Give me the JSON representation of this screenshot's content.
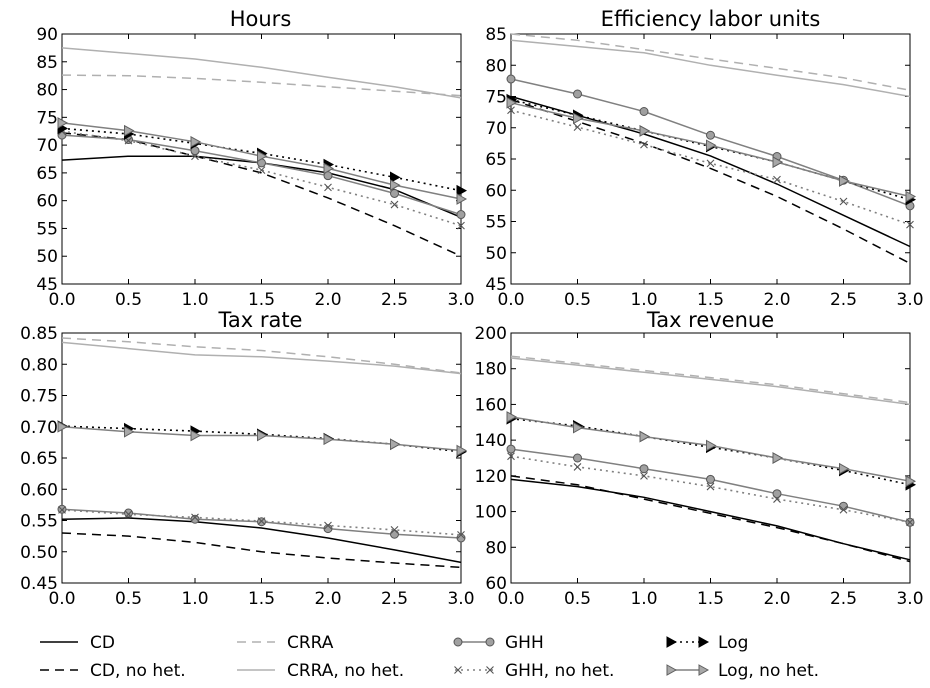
{
  "chart_data": [
    {
      "type": "line",
      "title": "Hours",
      "x": [
        0,
        0.5,
        1,
        1.5,
        2,
        2.5,
        3
      ],
      "xlim": [
        0,
        3
      ],
      "ylim": [
        45,
        90
      ],
      "xticks": [
        "0.0",
        "0.5",
        "1.0",
        "1.5",
        "2.0",
        "2.5",
        "3.0"
      ],
      "yticks": [
        "45",
        "50",
        "55",
        "60",
        "65",
        "70",
        "75",
        "80",
        "85",
        "90"
      ],
      "series": [
        {
          "name": "CD",
          "values": [
            67.3,
            68.0,
            68.0,
            66.8,
            65.0,
            62.0,
            57.0
          ]
        },
        {
          "name": "CD, no het.",
          "values": [
            72.2,
            71.0,
            68.0,
            65.0,
            60.5,
            55.5,
            50.0
          ]
        },
        {
          "name": "CRRA",
          "values": [
            82.6,
            82.5,
            82.0,
            81.3,
            80.5,
            79.7,
            78.9
          ]
        },
        {
          "name": "CRRA, no het.",
          "values": [
            87.5,
            86.5,
            85.5,
            84.0,
            82.2,
            80.5,
            78.5
          ]
        },
        {
          "name": "GHH",
          "values": [
            71.8,
            71.0,
            69.0,
            66.8,
            64.5,
            61.3,
            57.5
          ]
        },
        {
          "name": "GHH, no het.",
          "values": [
            72.5,
            70.8,
            68.0,
            65.5,
            62.4,
            59.3,
            55.5
          ]
        },
        {
          "name": "Log",
          "values": [
            73.0,
            72.0,
            70.3,
            68.5,
            66.5,
            64.2,
            61.8
          ]
        },
        {
          "name": "Log, no het.",
          "values": [
            74.0,
            72.6,
            70.6,
            68.0,
            65.8,
            62.8,
            60.3
          ]
        }
      ]
    },
    {
      "type": "line",
      "title": "Efficiency labor units",
      "x": [
        0,
        0.5,
        1,
        1.5,
        2,
        2.5,
        3
      ],
      "xlim": [
        0,
        3
      ],
      "ylim": [
        45,
        85
      ],
      "xticks": [
        "0.0",
        "0.5",
        "1.0",
        "1.5",
        "2.0",
        "2.5",
        "3.0"
      ],
      "yticks": [
        "45",
        "50",
        "55",
        "60",
        "65",
        "70",
        "75",
        "80",
        "85"
      ],
      "series": [
        {
          "name": "CD",
          "values": [
            75.0,
            72.0,
            69.0,
            65.5,
            61.0,
            56.0,
            51.0
          ]
        },
        {
          "name": "CD, no het.",
          "values": [
            74.5,
            71.0,
            67.5,
            63.5,
            59.0,
            53.8,
            48.3
          ]
        },
        {
          "name": "CRRA",
          "values": [
            85.0,
            84.0,
            82.5,
            81.0,
            79.5,
            78.0,
            76.0
          ]
        },
        {
          "name": "CRRA, no het.",
          "values": [
            84.0,
            83.0,
            82.0,
            80.0,
            78.4,
            76.9,
            75.0
          ]
        },
        {
          "name": "GHH",
          "values": [
            77.8,
            75.4,
            72.6,
            68.8,
            65.4,
            61.6,
            57.5
          ]
        },
        {
          "name": "GHH, no het.",
          "values": [
            72.8,
            70.1,
            67.3,
            64.3,
            61.7,
            58.2,
            54.5
          ]
        },
        {
          "name": "Log",
          "values": [
            74.5,
            72.0,
            69.5,
            67.0,
            64.5,
            61.5,
            58.5
          ]
        },
        {
          "name": "Log, no het.",
          "values": [
            74.0,
            71.5,
            69.5,
            67.2,
            64.5,
            61.5,
            59.0
          ]
        }
      ]
    },
    {
      "type": "line",
      "title": "Tax rate",
      "x": [
        0,
        0.5,
        1,
        1.5,
        2,
        2.5,
        3
      ],
      "xlim": [
        0,
        3
      ],
      "ylim": [
        0.45,
        0.85
      ],
      "xticks": [
        "0.0",
        "0.5",
        "1.0",
        "1.5",
        "2.0",
        "2.5",
        "3.0"
      ],
      "yticks": [
        "0.45",
        "0.50",
        "0.55",
        "0.60",
        "0.65",
        "0.70",
        "0.75",
        "0.80",
        "0.85"
      ],
      "series": [
        {
          "name": "CD",
          "values": [
            0.552,
            0.554,
            0.548,
            0.538,
            0.522,
            0.503,
            0.483
          ]
        },
        {
          "name": "CD, no het.",
          "values": [
            0.53,
            0.525,
            0.515,
            0.5,
            0.49,
            0.482,
            0.475
          ]
        },
        {
          "name": "CRRA",
          "values": [
            0.842,
            0.836,
            0.828,
            0.822,
            0.812,
            0.8,
            0.786
          ]
        },
        {
          "name": "CRRA, no het.",
          "values": [
            0.835,
            0.825,
            0.815,
            0.812,
            0.805,
            0.797,
            0.785
          ]
        },
        {
          "name": "GHH",
          "values": [
            0.568,
            0.562,
            0.552,
            0.548,
            0.537,
            0.528,
            0.522
          ]
        },
        {
          "name": "GHH, no het.",
          "values": [
            0.567,
            0.56,
            0.555,
            0.549,
            0.542,
            0.535,
            0.527
          ]
        },
        {
          "name": "Log",
          "values": [
            0.701,
            0.697,
            0.693,
            0.688,
            0.681,
            0.672,
            0.66
          ]
        },
        {
          "name": "Log, no het.",
          "values": [
            0.7,
            0.692,
            0.686,
            0.686,
            0.68,
            0.672,
            0.662
          ]
        }
      ]
    },
    {
      "type": "line",
      "title": "Tax revenue",
      "x": [
        0,
        0.5,
        1,
        1.5,
        2,
        2.5,
        3
      ],
      "xlim": [
        0,
        3
      ],
      "ylim": [
        60,
        200
      ],
      "xticks": [
        "0.0",
        "0.5",
        "1.0",
        "1.5",
        "2.0",
        "2.5",
        "3.0"
      ],
      "yticks": [
        "60",
        "80",
        "100",
        "120",
        "140",
        "160",
        "180",
        "200"
      ],
      "series": [
        {
          "name": "CD",
          "values": [
            118,
            114,
            108,
            100,
            92,
            82,
            73
          ]
        },
        {
          "name": "CD, no het.",
          "values": [
            120,
            115,
            107,
            99,
            91,
            82,
            72
          ]
        },
        {
          "name": "CRRA",
          "values": [
            187,
            183,
            179,
            175,
            171,
            166,
            161
          ]
        },
        {
          "name": "CRRA, no het.",
          "values": [
            186,
            182,
            178,
            174,
            170,
            165,
            160
          ]
        },
        {
          "name": "GHH",
          "values": [
            135,
            130,
            124,
            118,
            110,
            103,
            94
          ]
        },
        {
          "name": "GHH, no het.",
          "values": [
            131,
            125,
            120,
            114,
            107,
            101,
            94
          ]
        },
        {
          "name": "Log",
          "values": [
            152,
            148,
            142,
            136,
            130,
            123,
            115
          ]
        },
        {
          "name": "Log, no het.",
          "values": [
            153,
            147,
            142,
            137,
            130,
            124,
            117
          ]
        }
      ]
    }
  ],
  "legend": {
    "placement": "bottom",
    "entries": [
      {
        "label": "CD",
        "color": "#000000",
        "dash": "solid",
        "marker": "none"
      },
      {
        "label": "CD, no het.",
        "color": "#000000",
        "dash": "dashed",
        "marker": "none"
      },
      {
        "label": "CRRA",
        "color": "#b0b0b0",
        "dash": "dashed",
        "marker": "none"
      },
      {
        "label": "CRRA, no het.",
        "color": "#b0b0b0",
        "dash": "solid",
        "marker": "none"
      },
      {
        "label": "GHH",
        "color": "#808080",
        "dash": "solid",
        "marker": "circle"
      },
      {
        "label": "GHH, no het.",
        "color": "#808080",
        "dash": "dotted",
        "marker": "x"
      },
      {
        "label": "Log",
        "color": "#000000",
        "dash": "dotted",
        "marker": "triangle-right"
      },
      {
        "label": "Log, no het.",
        "color": "#808080",
        "dash": "solid",
        "marker": "triangle-right-open"
      }
    ]
  }
}
